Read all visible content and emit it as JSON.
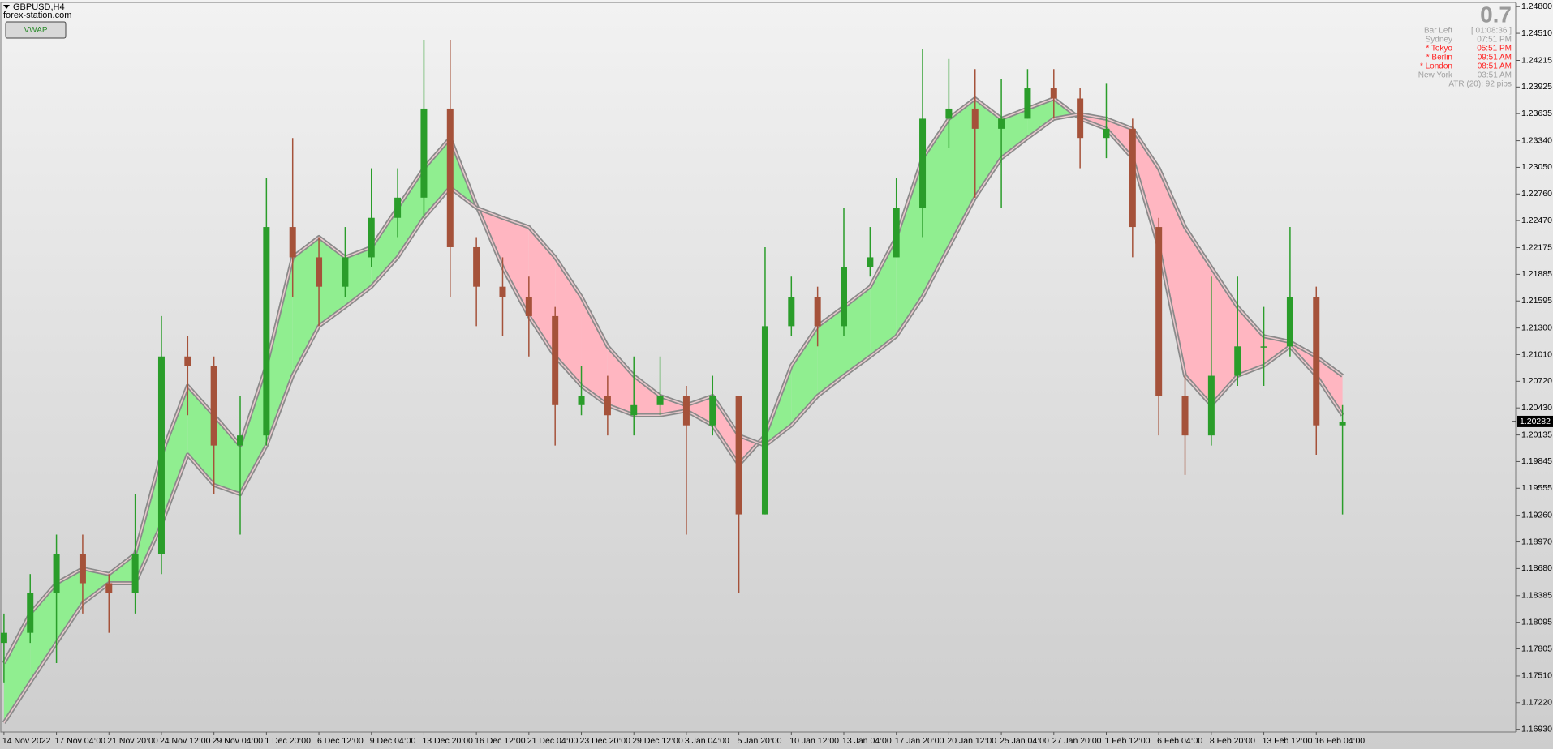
{
  "chart_data": {
    "type": "candlestick",
    "title": "GBPUSD,H4",
    "subtitle": "forex-station.com",
    "categories": [
      "14 Nov 2022",
      null,
      "17 Nov 04:00",
      null,
      "21 Nov 20:00",
      null,
      "24 Nov 12:00",
      null,
      "29 Nov 04:00",
      null,
      "1 Dec 20:00",
      null,
      "6 Dec 12:00",
      null,
      "9 Dec 04:00",
      null,
      "13 Dec 20:00",
      null,
      "16 Dec 12:00",
      null,
      "21 Dec 04:00",
      null,
      "23 Dec 20:00",
      null,
      "29 Dec 12:00",
      null,
      "3 Jan 04:00",
      null,
      "5 Jan 20:00",
      null,
      "10 Jan 12:00",
      null,
      "13 Jan 04:00",
      null,
      "17 Jan 20:00",
      null,
      "20 Jan 12:00",
      null,
      "25 Jan 04:00",
      null,
      "27 Jan 20:00",
      null,
      "1 Feb 12:00",
      null,
      "6 Feb 04:00",
      null,
      "8 Feb 20:00",
      null,
      "13 Feb 12:00",
      null,
      "16 Feb 04:00",
      null
    ],
    "open": [
      1.1787,
      1.1798,
      1.1841,
      1.1884,
      1.1852,
      1.1841,
      1.1884,
      1.2099,
      1.2089,
      1.2002,
      1.2013,
      1.224,
      1.2207,
      1.2175,
      1.2207,
      1.225,
      1.2272,
      1.2369,
      1.2218,
      1.2175,
      1.2164,
      1.2143,
      1.2046,
      1.2056,
      1.2035,
      1.2046,
      1.2056,
      1.2024,
      1.2056,
      1.1927,
      1.2132,
      1.2164,
      1.2132,
      1.2196,
      1.2207,
      1.2261,
      1.2358,
      1.2369,
      1.2347,
      1.2358,
      1.2391,
      1.238,
      1.2337,
      1.2347,
      1.224,
      1.2056,
      1.2013,
      1.2078,
      1.211,
      1.211,
      1.2164,
      1.2024
    ],
    "high": [
      1.1819,
      1.1862,
      1.1905,
      1.1905,
      1.1862,
      1.1949,
      1.2143,
      1.2121,
      1.2099,
      1.2056,
      1.2293,
      1.2337,
      1.2229,
      1.224,
      1.2304,
      1.2304,
      1.2444,
      1.2444,
      1.2229,
      1.2207,
      1.2186,
      1.2153,
      1.2089,
      1.2078,
      1.2099,
      1.2099,
      1.2067,
      1.2078,
      1.2056,
      1.2218,
      1.2186,
      1.2175,
      1.2261,
      1.224,
      1.2293,
      1.2434,
      1.2423,
      1.2412,
      1.2401,
      1.2412,
      1.2412,
      1.2391,
      1.2396,
      1.2358,
      1.225,
      1.2078,
      1.2186,
      1.2186,
      1.2153,
      1.224,
      1.2175,
      1.2046
    ],
    "low": [
      1.1744,
      1.1787,
      1.1765,
      1.1819,
      1.1798,
      1.1819,
      1.1862,
      1.2035,
      1.1949,
      1.1905,
      1.2002,
      1.2164,
      1.2132,
      1.2164,
      1.2196,
      1.2229,
      1.225,
      1.2164,
      1.2132,
      1.2121,
      1.2099,
      1.2002,
      1.2035,
      1.2013,
      1.2013,
      1.2035,
      1.1905,
      1.2013,
      1.1841,
      1.1927,
      1.2121,
      1.211,
      1.2121,
      1.2186,
      1.2207,
      1.2229,
      1.2326,
      1.2272,
      1.2261,
      1.2358,
      1.2358,
      1.2304,
      1.2315,
      1.2207,
      1.2013,
      1.197,
      1.2002,
      1.2067,
      1.2067,
      1.2099,
      1.1992,
      1.1927
    ],
    "close": [
      1.1798,
      1.1841,
      1.1884,
      1.1852,
      1.1841,
      1.1884,
      1.2099,
      1.2089,
      1.2002,
      1.2013,
      1.224,
      1.2207,
      1.2175,
      1.2207,
      1.225,
      1.2272,
      1.2369,
      1.2218,
      1.2175,
      1.2164,
      1.2143,
      1.2046,
      1.2056,
      1.2035,
      1.2046,
      1.2056,
      1.2024,
      1.2056,
      1.1927,
      1.2132,
      1.2164,
      1.2132,
      1.2196,
      1.2207,
      1.2261,
      1.2358,
      1.2369,
      1.2347,
      1.2358,
      1.2391,
      1.238,
      1.2337,
      1.2347,
      1.224,
      1.2056,
      1.2013,
      1.2078,
      1.211,
      1.211,
      1.2164,
      1.2024,
      1.2028
    ],
    "up_color": "#2a9d2a",
    "down_color": "#a5523a",
    "band": {
      "fast": [
        1.1765,
        1.1819,
        1.1852,
        1.1868,
        1.1862,
        1.1884,
        1.1992,
        1.2067,
        1.2035,
        1.2002,
        1.2089,
        1.2207,
        1.2229,
        1.2207,
        1.2218,
        1.2261,
        1.2304,
        1.2337,
        1.2264,
        1.2196,
        1.2143,
        1.2099,
        1.2067,
        1.2046,
        1.2035,
        1.2035,
        1.204,
        1.2024,
        1.1981,
        1.2013,
        1.2089,
        1.2132,
        1.2153,
        1.2175,
        1.2229,
        1.2315,
        1.2358,
        1.238,
        1.2358,
        1.2369,
        1.238,
        1.2358,
        1.2347,
        1.2315,
        1.2218,
        1.2078,
        1.2046,
        1.2078,
        1.2089,
        1.211,
        1.2078,
        1.2035
      ],
      "slow": [
        1.17,
        1.1744,
        1.1787,
        1.183,
        1.1852,
        1.1852,
        1.1916,
        1.1992,
        1.1959,
        1.1949,
        1.2002,
        1.2078,
        1.2132,
        1.2153,
        1.2175,
        1.2207,
        1.225,
        1.2283,
        1.2261,
        1.225,
        1.224,
        1.2207,
        1.2164,
        1.211,
        1.2078,
        1.2056,
        1.2046,
        1.2056,
        1.2013,
        1.2002,
        1.2024,
        1.2056,
        1.2078,
        1.2099,
        1.2121,
        1.2164,
        1.2218,
        1.2272,
        1.2315,
        1.2337,
        1.2358,
        1.2363,
        1.2358,
        1.2347,
        1.2304,
        1.224,
        1.2196,
        1.2153,
        1.2121,
        1.2115,
        1.2099,
        1.2078
      ],
      "up_color": "#90ee90",
      "down_color": "#ffb6c1",
      "edge_color": "#8a8a8a"
    },
    "ylim": [
      1.169,
      1.2484
    ],
    "yticks": [
      {
        "value": 1.248,
        "label": "1.24800"
      },
      {
        "value": 1.2451,
        "label": "1.24510"
      },
      {
        "value": 1.24215,
        "label": "1.24215"
      },
      {
        "value": 1.23925,
        "label": "1.23925"
      },
      {
        "value": 1.23635,
        "label": "1.23635"
      },
      {
        "value": 1.2334,
        "label": "1.23340"
      },
      {
        "value": 1.2305,
        "label": "1.23050"
      },
      {
        "value": 1.2276,
        "label": "1.22760"
      },
      {
        "value": 1.2247,
        "label": "1.22470"
      },
      {
        "value": 1.22175,
        "label": "1.22175"
      },
      {
        "value": 1.21885,
        "label": "1.21885"
      },
      {
        "value": 1.21595,
        "label": "1.21595"
      },
      {
        "value": 1.213,
        "label": "1.21300"
      },
      {
        "value": 1.2101,
        "label": "1.21010"
      },
      {
        "value": 1.2072,
        "label": "1.20720"
      },
      {
        "value": 1.2043,
        "label": "1.20430"
      },
      {
        "value": 1.20135,
        "label": "1.20135"
      },
      {
        "value": 1.19845,
        "label": "1.19845"
      },
      {
        "value": 1.19555,
        "label": "1.19555"
      },
      {
        "value": 1.1926,
        "label": "1.19260"
      },
      {
        "value": 1.1897,
        "label": "1.18970"
      },
      {
        "value": 1.1868,
        "label": "1.18680"
      },
      {
        "value": 1.18385,
        "label": "1.18385"
      },
      {
        "value": 1.18095,
        "label": "1.18095"
      },
      {
        "value": 1.17805,
        "label": "1.17805"
      },
      {
        "value": 1.1751,
        "label": "1.17510"
      },
      {
        "value": 1.1722,
        "label": "1.17220"
      },
      {
        "value": 1.1693,
        "label": "1.16930"
      }
    ],
    "last_price": {
      "value": 1.20282,
      "label": "1.20282"
    },
    "grid": false
  },
  "toolbar": {
    "button": "VWAP"
  },
  "info_panel": {
    "value": "0.7",
    "rows": [
      {
        "label": "Bar Left",
        "time": "[ 01:08:36 ]",
        "color": "#a0a0a0"
      },
      {
        "label": "Sydney",
        "time": "07:51 PM",
        "color": "#a0a0a0"
      },
      {
        "label": "* Tokyo",
        "time": "05:51 PM",
        "color": "#ff2020"
      },
      {
        "label": "* Berlin",
        "time": "09:51 AM",
        "color": "#ff2020"
      },
      {
        "label": "* London",
        "time": "08:51 AM",
        "color": "#ff2020"
      },
      {
        "label": "New York",
        "time": "03:51 AM",
        "color": "#a0a0a0"
      }
    ],
    "atr": "ATR (20): 92 pips"
  }
}
